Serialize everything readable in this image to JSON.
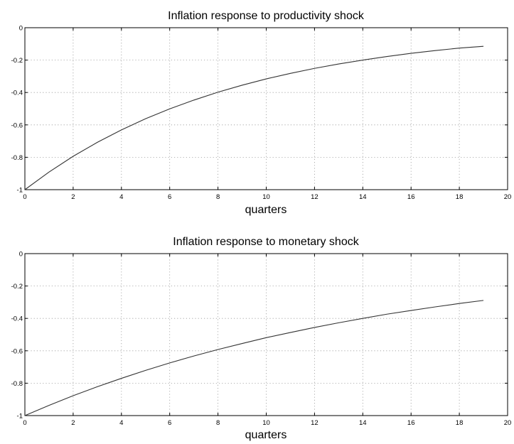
{
  "chart_data": [
    {
      "type": "line",
      "title": "Inflation response to productivity shock",
      "xlabel": "quarters",
      "ylabel": "",
      "xlim": [
        0,
        20
      ],
      "ylim": [
        -1,
        0
      ],
      "xticks": [
        "0",
        "2",
        "4",
        "6",
        "8",
        "10",
        "12",
        "14",
        "16",
        "18",
        "20"
      ],
      "yticks": [
        "0",
        "-0.2",
        "-0.4",
        "-0.6",
        "-0.8",
        "-1"
      ],
      "grid": true,
      "series": [
        {
          "x": [
            0,
            1,
            2,
            3,
            4,
            5,
            6,
            7,
            8,
            9,
            10,
            11,
            12,
            13,
            14,
            15,
            16,
            17,
            18,
            19
          ],
          "values": [
            -1.0,
            -0.891,
            -0.794,
            -0.708,
            -0.631,
            -0.562,
            -0.501,
            -0.447,
            -0.398,
            -0.355,
            -0.316,
            -0.282,
            -0.251,
            -0.224,
            -0.2,
            -0.178,
            -0.158,
            -0.141,
            -0.126,
            -0.115
          ]
        }
      ]
    },
    {
      "type": "line",
      "title": "Inflation response to monetary shock",
      "xlabel": "quarters",
      "ylabel": "",
      "xlim": [
        0,
        20
      ],
      "ylim": [
        -1,
        0
      ],
      "xticks": [
        "0",
        "2",
        "4",
        "6",
        "8",
        "10",
        "12",
        "14",
        "16",
        "18",
        "20"
      ],
      "yticks": [
        "0",
        "-0.2",
        "-0.4",
        "-0.6",
        "-0.8",
        "-1"
      ],
      "grid": true,
      "series": [
        {
          "x": [
            0,
            1,
            2,
            3,
            4,
            5,
            6,
            7,
            8,
            9,
            10,
            11,
            12,
            13,
            14,
            15,
            16,
            17,
            18,
            19
          ],
          "values": [
            -1.0,
            -0.937,
            -0.877,
            -0.822,
            -0.77,
            -0.721,
            -0.675,
            -0.632,
            -0.592,
            -0.555,
            -0.519,
            -0.487,
            -0.456,
            -0.427,
            -0.4,
            -0.374,
            -0.351,
            -0.329,
            -0.308,
            -0.289
          ]
        }
      ]
    }
  ]
}
